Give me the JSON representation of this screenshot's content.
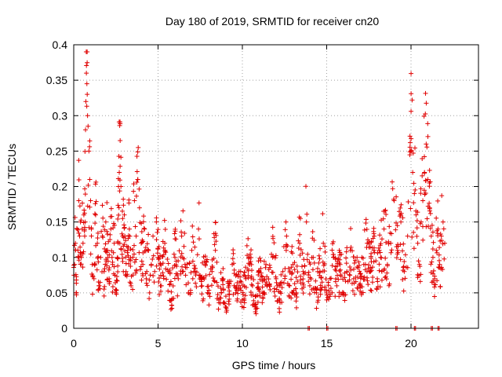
{
  "chart_data": {
    "type": "scatter",
    "title": "Day 180 of 2019, SRMTID for receiver cn20",
    "xlabel": "GPS time / hours",
    "ylabel": "SRMTID / TECUs",
    "xlim": [
      0,
      24
    ],
    "ylim": [
      0,
      0.4
    ],
    "xticks": [
      0,
      5,
      10,
      15,
      20
    ],
    "yticks": [
      0,
      0.05,
      0.1,
      0.15,
      0.2,
      0.25,
      0.3,
      0.35,
      0.4
    ],
    "grid": true,
    "marker": "+",
    "color": "#e00000",
    "series": [
      {
        "name": "SRMTID",
        "points": [
          [
            0.05,
            0.09
          ],
          [
            0.1,
            0.12
          ],
          [
            0.15,
            0.05
          ],
          [
            0.2,
            0.14
          ],
          [
            0.25,
            0.11
          ],
          [
            0.3,
            0.18
          ],
          [
            0.35,
            0.13
          ],
          [
            0.4,
            0.15
          ],
          [
            0.45,
            0.1
          ],
          [
            0.5,
            0.14
          ],
          [
            0.55,
            0.12
          ],
          [
            0.6,
            0.16
          ],
          [
            0.65,
            0.13
          ],
          [
            0.7,
            0.28
          ],
          [
            0.72,
            0.32
          ],
          [
            0.75,
            0.36
          ],
          [
            0.78,
            0.345
          ],
          [
            0.8,
            0.33
          ],
          [
            0.82,
            0.3
          ],
          [
            0.85,
            0.285
          ],
          [
            0.9,
            0.25
          ],
          [
            0.95,
            0.21
          ],
          [
            1.0,
            0.18
          ],
          [
            1.05,
            0.14
          ],
          [
            1.1,
            0.09
          ],
          [
            1.2,
            0.07
          ],
          [
            1.3,
            0.16
          ],
          [
            1.4,
            0.12
          ],
          [
            1.5,
            0.06
          ],
          [
            1.6,
            0.1
          ],
          [
            1.7,
            0.13
          ],
          [
            1.8,
            0.08
          ],
          [
            1.9,
            0.15
          ],
          [
            2.0,
            0.11
          ],
          [
            2.1,
            0.07
          ],
          [
            2.2,
            0.14
          ],
          [
            2.3,
            0.09
          ],
          [
            2.4,
            0.12
          ],
          [
            2.5,
            0.05
          ],
          [
            2.6,
            0.1
          ],
          [
            2.7,
            0.22
          ],
          [
            2.8,
            0.2
          ],
          [
            2.9,
            0.13
          ],
          [
            3.0,
            0.16
          ],
          [
            3.1,
            0.08
          ],
          [
            3.2,
            0.11
          ],
          [
            3.3,
            0.14
          ],
          [
            3.4,
            0.06
          ],
          [
            3.5,
            0.1
          ],
          [
            3.6,
            0.18
          ],
          [
            3.7,
            0.13
          ],
          [
            3.8,
            0.21
          ],
          [
            3.9,
            0.17
          ],
          [
            4.0,
            0.12
          ],
          [
            4.1,
            0.09
          ],
          [
            4.2,
            0.14
          ],
          [
            4.3,
            0.07
          ],
          [
            4.4,
            0.11
          ],
          [
            4.5,
            0.05
          ],
          [
            4.6,
            0.09
          ],
          [
            4.7,
            0.13
          ],
          [
            4.8,
            0.08
          ],
          [
            4.9,
            0.15
          ],
          [
            5.0,
            0.1
          ],
          [
            5.2,
            0.06
          ],
          [
            5.4,
            0.12
          ],
          [
            5.6,
            0.08
          ],
          [
            5.8,
            0.04
          ],
          [
            6.0,
            0.1
          ],
          [
            6.2,
            0.07
          ],
          [
            6.4,
            0.13
          ],
          [
            6.6,
            0.09
          ],
          [
            6.8,
            0.05
          ],
          [
            7.0,
            0.11
          ],
          [
            7.2,
            0.08
          ],
          [
            7.4,
            0.14
          ],
          [
            7.6,
            0.06
          ],
          [
            7.8,
            0.09
          ],
          [
            8.0,
            0.05
          ],
          [
            8.2,
            0.08
          ],
          [
            8.4,
            0.11
          ],
          [
            8.6,
            0.04
          ],
          [
            8.8,
            0.07
          ],
          [
            9.0,
            0.03
          ],
          [
            9.2,
            0.06
          ],
          [
            9.4,
            0.09
          ],
          [
            9.6,
            0.05
          ],
          [
            9.8,
            0.08
          ],
          [
            10.0,
            0.04
          ],
          [
            10.2,
            0.07
          ],
          [
            10.4,
            0.1
          ],
          [
            10.6,
            0.06
          ],
          [
            10.8,
            0.03
          ],
          [
            11.0,
            0.08
          ],
          [
            11.2,
            0.05
          ],
          [
            11.4,
            0.09
          ],
          [
            11.6,
            0.06
          ],
          [
            11.8,
            0.1
          ],
          [
            12.0,
            0.07
          ],
          [
            12.2,
            0.04
          ],
          [
            12.4,
            0.08
          ],
          [
            12.6,
            0.11
          ],
          [
            12.8,
            0.06
          ],
          [
            13.0,
            0.09
          ],
          [
            13.2,
            0.05
          ],
          [
            13.4,
            0.12
          ],
          [
            13.6,
            0.08
          ],
          [
            13.8,
            0.15
          ],
          [
            14.0,
            0.06
          ],
          [
            14.2,
            0.1
          ],
          [
            14.4,
            0.05
          ],
          [
            14.6,
            0.08
          ],
          [
            14.8,
            0.12
          ],
          [
            15.0,
            0.04
          ],
          [
            15.2,
            0.07
          ],
          [
            15.4,
            0.1
          ],
          [
            15.6,
            0.06
          ],
          [
            15.8,
            0.09
          ],
          [
            16.0,
            0.05
          ],
          [
            16.2,
            0.08
          ],
          [
            16.4,
            0.11
          ],
          [
            16.6,
            0.07
          ],
          [
            16.8,
            0.1
          ],
          [
            17.0,
            0.06
          ],
          [
            17.2,
            0.09
          ],
          [
            17.4,
            0.12
          ],
          [
            17.6,
            0.08
          ],
          [
            17.8,
            0.11
          ],
          [
            18.0,
            0.07
          ],
          [
            18.2,
            0.1
          ],
          [
            18.4,
            0.14
          ],
          [
            18.6,
            0.09
          ],
          [
            18.8,
            0.12
          ],
          [
            19.0,
            0.18
          ],
          [
            19.2,
            0.11
          ],
          [
            19.4,
            0.15
          ],
          [
            19.6,
            0.08
          ],
          [
            19.8,
            0.13
          ],
          [
            20.0,
            0.25
          ],
          [
            20.1,
            0.22
          ],
          [
            20.2,
            0.19
          ],
          [
            20.3,
            0.16
          ],
          [
            20.4,
            0.12
          ],
          [
            20.5,
            0.09
          ],
          [
            20.6,
            0.15
          ],
          [
            20.7,
            0.18
          ],
          [
            20.8,
            0.22
          ],
          [
            20.9,
            0.26
          ],
          [
            21.0,
            0.21
          ],
          [
            21.1,
            0.17
          ],
          [
            21.2,
            0.13
          ],
          [
            21.3,
            0.1
          ],
          [
            21.4,
            0.07
          ],
          [
            21.5,
            0.11
          ],
          [
            21.6,
            0.14
          ],
          [
            21.7,
            0.09
          ],
          [
            21.8,
            0.13
          ],
          [
            21.9,
            0.15
          ],
          [
            22.0,
            0.12
          ]
        ]
      }
    ],
    "zero_markers_x": [
      13.9,
      15.0,
      19.1,
      20.2,
      21.2,
      21.6
    ]
  }
}
